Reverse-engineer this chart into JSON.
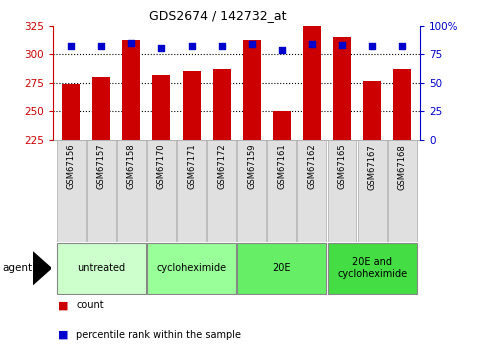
{
  "title": "GDS2674 / 142732_at",
  "samples": [
    "GSM67156",
    "GSM67157",
    "GSM67158",
    "GSM67170",
    "GSM67171",
    "GSM67172",
    "GSM67159",
    "GSM67161",
    "GSM67162",
    "GSM67165",
    "GSM67167",
    "GSM67168"
  ],
  "counts": [
    274,
    280,
    313,
    282,
    285,
    287,
    313,
    250,
    325,
    315,
    277,
    287
  ],
  "percentiles": [
    82,
    82,
    85,
    81,
    82,
    82,
    84,
    79,
    84,
    83,
    82,
    82
  ],
  "ylim_left": [
    225,
    325
  ],
  "ylim_right": [
    0,
    100
  ],
  "yticks_left": [
    225,
    250,
    275,
    300,
    325
  ],
  "yticks_right": [
    0,
    25,
    50,
    75,
    100
  ],
  "bar_color": "#cc0000",
  "dot_color": "#0000cc",
  "bar_width": 0.6,
  "groups": [
    {
      "label": "untreated",
      "samples": [
        "GSM67156",
        "GSM67157",
        "GSM67158"
      ],
      "color": "#ccffcc"
    },
    {
      "label": "cycloheximide",
      "samples": [
        "GSM67170",
        "GSM67171",
        "GSM67172"
      ],
      "color": "#99ff99"
    },
    {
      "label": "20E",
      "samples": [
        "GSM67159",
        "GSM67161",
        "GSM67162"
      ],
      "color": "#66ee66"
    },
    {
      "label": "20E and\ncycloheximide",
      "samples": [
        "GSM67165",
        "GSM67167",
        "GSM67168"
      ],
      "color": "#44dd44"
    }
  ],
  "agent_label": "agent",
  "legend_count_label": "count",
  "legend_pct_label": "percentile rank within the sample",
  "background_plot": "#ffffff",
  "title_color": "#000000",
  "left_axis_color": "#cc0000",
  "right_axis_color": "#0000cc",
  "grid_dotted_values": [
    250,
    275,
    300
  ],
  "tick_bg_color": "#e0e0e0",
  "tick_border_color": "#aaaaaa"
}
